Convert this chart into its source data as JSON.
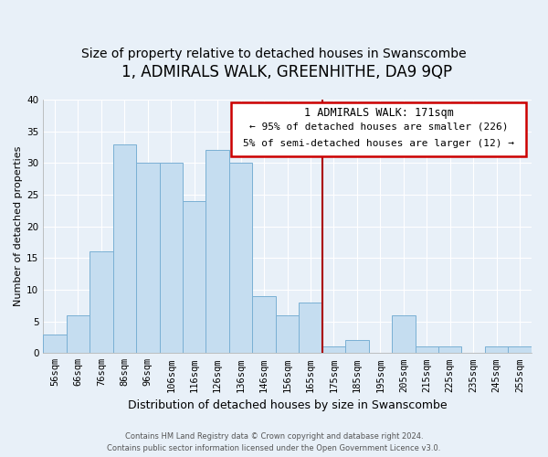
{
  "title": "1, ADMIRALS WALK, GREENHITHE, DA9 9QP",
  "subtitle": "Size of property relative to detached houses in Swanscombe",
  "xlabel": "Distribution of detached houses by size in Swanscombe",
  "ylabel": "Number of detached properties",
  "bar_labels": [
    "56sqm",
    "66sqm",
    "76sqm",
    "86sqm",
    "96sqm",
    "106sqm",
    "116sqm",
    "126sqm",
    "136sqm",
    "146sqm",
    "156sqm",
    "165sqm",
    "175sqm",
    "185sqm",
    "195sqm",
    "205sqm",
    "215sqm",
    "225sqm",
    "235sqm",
    "245sqm",
    "255sqm"
  ],
  "bar_values": [
    3,
    6,
    16,
    33,
    30,
    30,
    24,
    32,
    30,
    9,
    6,
    8,
    1,
    2,
    0,
    6,
    1,
    1,
    0,
    1,
    1
  ],
  "bar_color": "#c5ddf0",
  "bar_edge_color": "#7ab0d4",
  "vline_color": "#aa0000",
  "annotation_title": "1 ADMIRALS WALK: 171sqm",
  "annotation_line1": "← 95% of detached houses are smaller (226)",
  "annotation_line2": "5% of semi-detached houses are larger (12) →",
  "annotation_box_color": "#ffffff",
  "annotation_box_edge": "#cc0000",
  "ylim": [
    0,
    40
  ],
  "yticks": [
    0,
    5,
    10,
    15,
    20,
    25,
    30,
    35,
    40
  ],
  "footer_line1": "Contains HM Land Registry data © Crown copyright and database right 2024.",
  "footer_line2": "Contains public sector information licensed under the Open Government Licence v3.0.",
  "bg_color": "#e8f0f8",
  "plot_bg_color": "#e8f0f8",
  "grid_color": "#ffffff",
  "title_fontsize": 12,
  "subtitle_fontsize": 10,
  "ylabel_fontsize": 8,
  "xlabel_fontsize": 9,
  "tick_fontsize": 7.5,
  "annotation_title_fontsize": 8.5,
  "annotation_text_fontsize": 8
}
